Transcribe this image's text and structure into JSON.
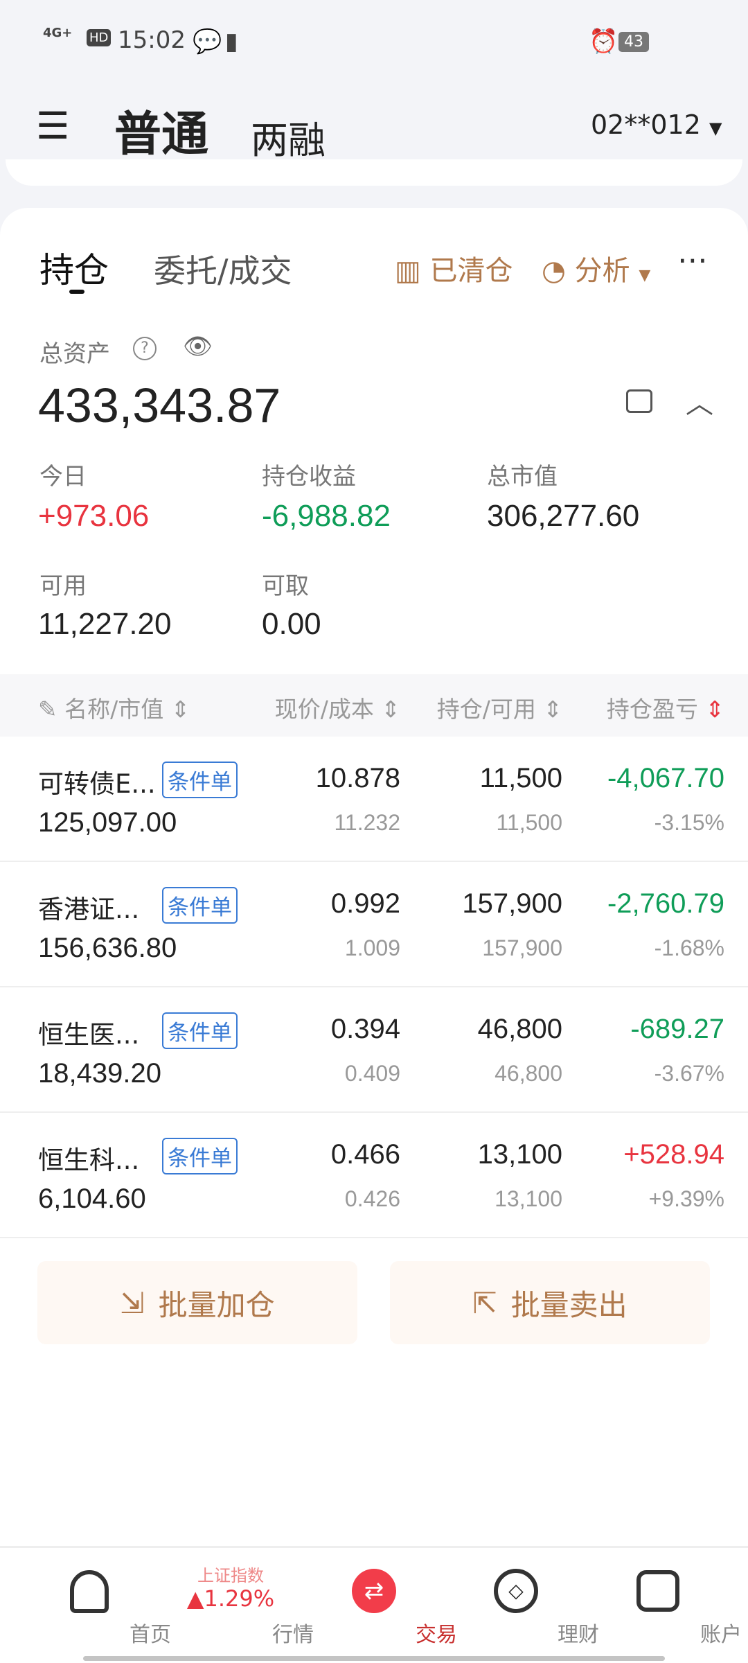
{
  "status": {
    "network": "4G+",
    "hd": "HD",
    "time": "15:02",
    "battery": "43"
  },
  "header": {
    "tab_normal": "普通",
    "tab_margin": "两融",
    "account": "02**012"
  },
  "tabs": {
    "holdings": "持仓",
    "orders": "委托/成交",
    "cleared": "已清仓",
    "analysis": "分析"
  },
  "summary": {
    "total_label": "总资产",
    "total": "433,343.87",
    "today_label": "今日",
    "today": "+973.06",
    "pnl_label": "持仓收益",
    "pnl": "-6,988.82",
    "mv_label": "总市值",
    "mv": "306,277.60",
    "avail_label": "可用",
    "avail": "11,227.20",
    "withdraw_label": "可取",
    "withdraw": "0.00"
  },
  "table": {
    "headers": [
      "名称/市值",
      "现价/成本",
      "持仓/可用",
      "持仓盈亏"
    ],
    "rows": [
      {
        "name": "可转债E...",
        "tag": "条件单",
        "mv": "125,097.00",
        "price": "10.878",
        "cost": "11.232",
        "qty": "11,500",
        "avail": "11,500",
        "pnl": "-4,067.70",
        "pct": "-3.15%",
        "dir": "down"
      },
      {
        "name": "香港证...",
        "tag": "条件单",
        "mv": "156,636.80",
        "price": "0.992",
        "cost": "1.009",
        "qty": "157,900",
        "avail": "157,900",
        "pnl": "-2,760.79",
        "pct": "-1.68%",
        "dir": "down"
      },
      {
        "name": "恒生医...",
        "tag": "条件单",
        "mv": "18,439.20",
        "price": "0.394",
        "cost": "0.409",
        "qty": "46,800",
        "avail": "46,800",
        "pnl": "-689.27",
        "pct": "-3.67%",
        "dir": "down"
      },
      {
        "name": "恒生科...",
        "tag": "条件单",
        "mv": "6,104.60",
        "price": "0.466",
        "cost": "0.426",
        "qty": "13,100",
        "avail": "13,100",
        "pnl": "+528.94",
        "pct": "+9.39%",
        "dir": "up"
      }
    ]
  },
  "actions": {
    "batch_buy": "批量加仓",
    "batch_sell": "批量卖出"
  },
  "nav": {
    "home": "首页",
    "market": "行情",
    "index_name": "上证指数",
    "index_change": "1.29%",
    "trade": "交易",
    "wealth": "理财",
    "account": "账户"
  },
  "colors": {
    "up": "#e8343f",
    "down": "#0f9d58",
    "accent": "#b0794c"
  }
}
